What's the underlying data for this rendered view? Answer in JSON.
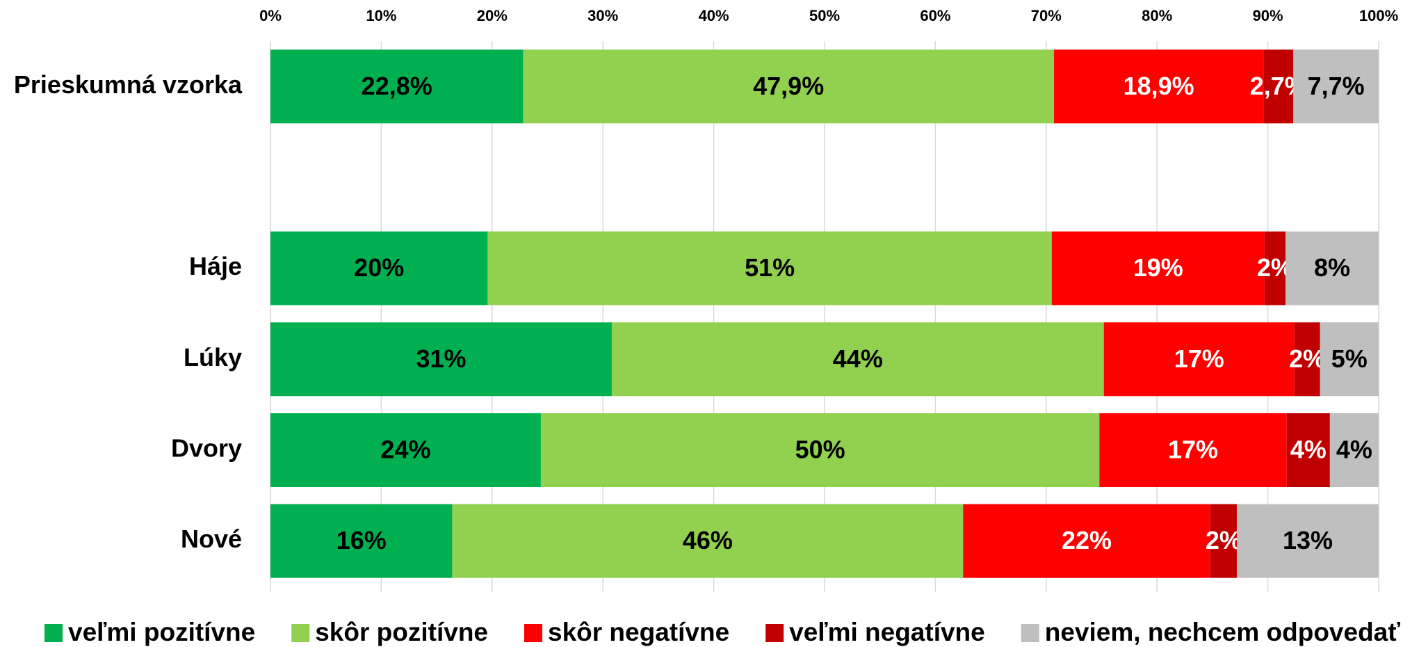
{
  "chart_data": {
    "type": "stacked-bar-horizontal",
    "categories": [
      "Prieskumná vzorka",
      null,
      "Háje",
      "Lúky",
      "Dvory",
      "Nové"
    ],
    "series": [
      {
        "name": "veľmi pozitívne",
        "color": "#00b050",
        "label_color": "#000000",
        "values": [
          22.8,
          null,
          19.6,
          30.8,
          24.4,
          16.4
        ],
        "value_labels": [
          "22,8%",
          null,
          "20%",
          "31%",
          "24%",
          "16%"
        ]
      },
      {
        "name": "skôr pozitívne",
        "color": "#92d050",
        "label_color": "#000000",
        "values": [
          47.9,
          null,
          50.9,
          44.4,
          50.4,
          46.1
        ],
        "value_labels": [
          "47,9%",
          null,
          "51%",
          "44%",
          "50%",
          "46%"
        ]
      },
      {
        "name": "skôr negatívne",
        "color": "#ff0000",
        "label_color": "#ffffff",
        "values": [
          18.9,
          null,
          19.2,
          17.2,
          16.9,
          22.3
        ],
        "value_labels": [
          "18,9%",
          null,
          "19%",
          "17%",
          "17%",
          "22%"
        ]
      },
      {
        "name": "veľmi negatívne",
        "color": "#c00000",
        "label_color": "#ffffff",
        "values": [
          2.7,
          null,
          1.9,
          2.3,
          3.9,
          2.4
        ],
        "value_labels": [
          "2,7%",
          null,
          "2%",
          "2%",
          "4%",
          "2%"
        ]
      },
      {
        "name": "neviem, nechcem odpovedať",
        "color": "#bfbfbf",
        "label_color": "#000000",
        "values": [
          7.7,
          null,
          8.4,
          5.3,
          4.4,
          12.8
        ],
        "value_labels": [
          "7,7%",
          null,
          "8%",
          "5%",
          "4%",
          "13%"
        ]
      }
    ],
    "xlim": [
      0,
      100
    ],
    "xticks": [
      {
        "value": 0,
        "label": "0%"
      },
      {
        "value": 10,
        "label": "10%"
      },
      {
        "value": 20,
        "label": "20%"
      },
      {
        "value": 30,
        "label": "30%"
      },
      {
        "value": 40,
        "label": "40%"
      },
      {
        "value": 50,
        "label": "50%"
      },
      {
        "value": 60,
        "label": "60%"
      },
      {
        "value": 70,
        "label": "70%"
      },
      {
        "value": 80,
        "label": "80%"
      },
      {
        "value": 90,
        "label": "90%"
      },
      {
        "value": 100,
        "label": "100%"
      }
    ],
    "grid": true,
    "legend": "bottom"
  }
}
